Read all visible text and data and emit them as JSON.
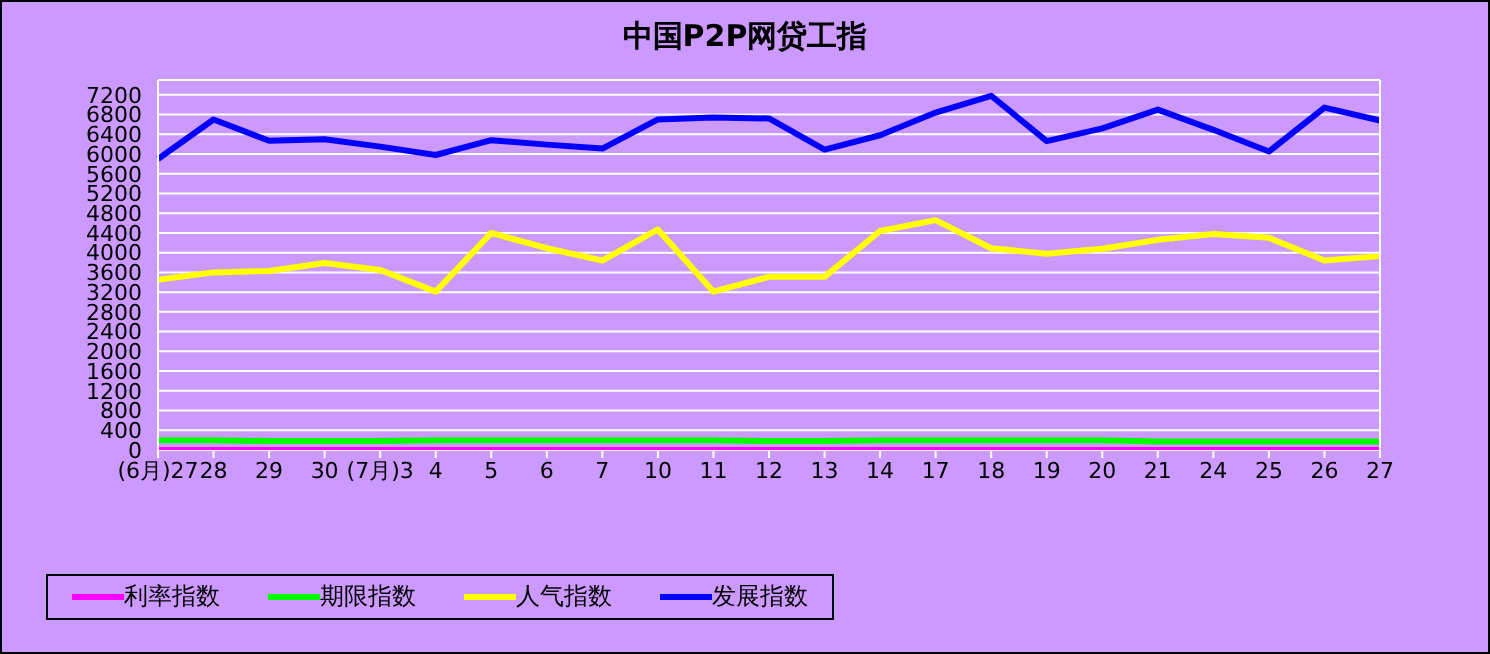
{
  "chart_data": {
    "type": "line",
    "title": "中国P2P网贷工指",
    "categories": [
      "(6月)27",
      "28",
      "29",
      "30",
      "(7月)3",
      "4",
      "5",
      "6",
      "7",
      "10",
      "11",
      "12",
      "13",
      "14",
      "17",
      "18",
      "19",
      "20",
      "21",
      "24",
      "25",
      "26",
      "27"
    ],
    "series": [
      {
        "name": "利率指数",
        "color": "#ff00ff",
        "values": [
          0,
          0,
          0,
          0,
          0,
          0,
          0,
          0,
          0,
          0,
          0,
          0,
          0,
          0,
          0,
          0,
          0,
          0,
          0,
          0,
          0,
          0,
          0
        ]
      },
      {
        "name": "期限指数",
        "color": "#00ff00",
        "values": [
          200,
          200,
          180,
          180,
          180,
          200,
          200,
          200,
          200,
          200,
          200,
          180,
          180,
          200,
          200,
          200,
          200,
          200,
          170,
          170,
          170,
          170,
          170
        ]
      },
      {
        "name": "人气指数",
        "color": "#ffff00",
        "values": [
          3450,
          3600,
          3630,
          3790,
          3650,
          3210,
          4400,
          4090,
          3840,
          4470,
          3210,
          3510,
          3510,
          4440,
          4660,
          4090,
          3980,
          4080,
          4260,
          4380,
          4300,
          3840,
          3930
        ]
      },
      {
        "name": "发展指数",
        "color": "#0000ff",
        "values": [
          5900,
          6700,
          6270,
          6300,
          6150,
          5980,
          6280,
          6190,
          6110,
          6700,
          6740,
          6720,
          6090,
          6380,
          6840,
          7180,
          6260,
          6520,
          6900,
          6490,
          6050,
          6940,
          6680
        ]
      }
    ],
    "ylim": [
      0,
      7500
    ],
    "yticks": [
      0,
      400,
      800,
      1200,
      1600,
      2000,
      2400,
      2800,
      3200,
      3600,
      4000,
      4400,
      4800,
      5200,
      5600,
      6000,
      6400,
      6800,
      7200
    ],
    "grid": "y",
    "legend": "bottom left",
    "marker": "none",
    "line_style": "solid"
  }
}
